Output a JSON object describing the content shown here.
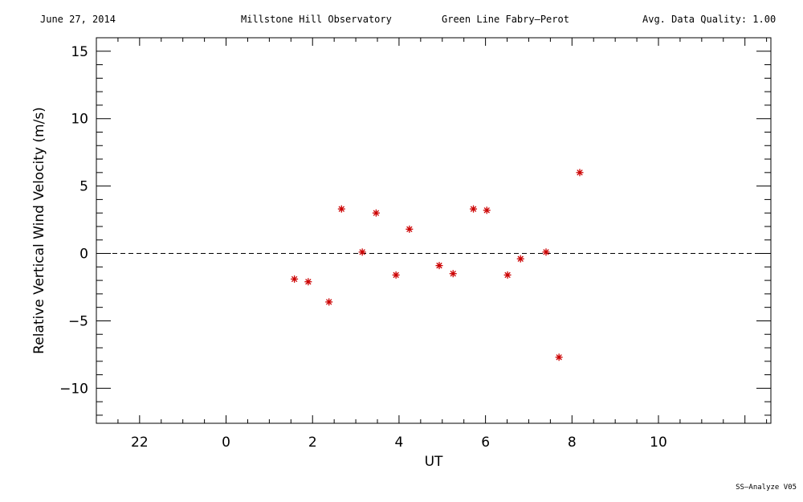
{
  "header": {
    "date": "June 27, 2014",
    "observatory": "Millstone Hill Observatory",
    "instrument": "Green Line Fabry—Perot",
    "quality": "Avg. Data Quality: 1.00"
  },
  "footer": {
    "version": "SS—Analyze V05"
  },
  "colors": {
    "marker": "#cc0000",
    "axis": "#000000"
  },
  "chart_data": {
    "type": "scatter",
    "xlabel": "UT",
    "ylabel": "Relative Vertical Wind Velocity (m/s)",
    "xlim": [
      -3,
      12.6
    ],
    "ylim": [
      -12.6,
      16
    ],
    "xticks": [
      22,
      0,
      2,
      4,
      6,
      8,
      10
    ],
    "xtick_values": [
      -2,
      0,
      2,
      4,
      6,
      8,
      10
    ],
    "yticks": [
      15,
      10,
      5,
      0,
      -5,
      -10
    ],
    "yticklabels": [
      "15",
      "10",
      "5",
      "0",
      "−5",
      "−10"
    ],
    "reference_line": 0,
    "grid": false,
    "x": [
      1.58,
      1.9,
      2.38,
      2.67,
      3.15,
      3.47,
      3.93,
      4.24,
      4.93,
      5.25,
      5.72,
      6.03,
      6.51,
      6.81,
      7.4,
      7.7,
      8.18
    ],
    "y": [
      -1.9,
      -2.1,
      -3.6,
      3.3,
      0.1,
      3.0,
      -1.6,
      1.8,
      -0.9,
      -1.5,
      3.3,
      3.2,
      -1.6,
      -0.4,
      0.1,
      -7.7,
      6.0
    ]
  }
}
